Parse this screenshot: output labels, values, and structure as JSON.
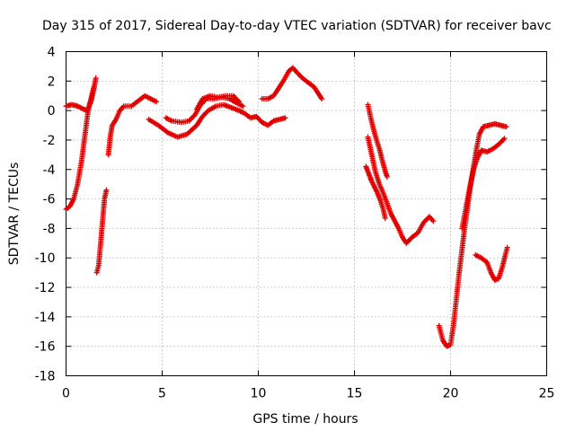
{
  "chart_data": {
    "type": "scatter",
    "title": "Day 315 of 2017, Sidereal Day-to-day VTEC variation (SDTVAR) for receiver bavc",
    "xlabel": "GPS time / hours",
    "ylabel": "SDTVAR / TECUs",
    "xlim": [
      0,
      25
    ],
    "ylim": [
      -18,
      4
    ],
    "xticks": [
      "0",
      "5",
      "10",
      "15",
      "20",
      "25"
    ],
    "yticks": [
      "4",
      "2",
      "0",
      "-2",
      "-4",
      "-6",
      "-8",
      "-10",
      "-12",
      "-14",
      "-16",
      "-18"
    ],
    "grid": true,
    "marker": "plus",
    "color": "#e00000",
    "segments": [
      [
        [
          0.0,
          0.3
        ],
        [
          0.3,
          0.4
        ],
        [
          0.6,
          0.3
        ],
        [
          0.9,
          0.1
        ],
        [
          1.1,
          0.0
        ],
        [
          1.3,
          0.6
        ],
        [
          1.45,
          1.5
        ],
        [
          1.55,
          2.2
        ]
      ],
      [
        [
          0.0,
          -6.7
        ],
        [
          0.2,
          -6.5
        ],
        [
          0.4,
          -6.0
        ],
        [
          0.6,
          -5.0
        ],
        [
          0.8,
          -3.5
        ],
        [
          0.95,
          -2.0
        ],
        [
          1.05,
          -1.0
        ],
        [
          1.15,
          0.0
        ],
        [
          1.3,
          0.8
        ],
        [
          1.45,
          1.6
        ]
      ],
      [
        [
          1.6,
          -11.0
        ],
        [
          1.7,
          -10.5
        ],
        [
          1.8,
          -9.0
        ],
        [
          1.9,
          -7.5
        ],
        [
          2.0,
          -6.0
        ],
        [
          2.1,
          -5.4
        ]
      ],
      [
        [
          2.2,
          -3.0
        ],
        [
          2.3,
          -1.8
        ],
        [
          2.4,
          -1.0
        ],
        [
          2.6,
          -0.6
        ],
        [
          2.8,
          0.0
        ],
        [
          3.0,
          0.3
        ],
        [
          3.4,
          0.3
        ],
        [
          3.8,
          0.7
        ],
        [
          4.1,
          1.0
        ],
        [
          4.4,
          0.8
        ],
        [
          4.7,
          0.6
        ]
      ],
      [
        [
          4.3,
          -0.6
        ],
        [
          4.8,
          -1.0
        ],
        [
          5.3,
          -1.5
        ],
        [
          5.8,
          -1.8
        ],
        [
          6.3,
          -1.6
        ],
        [
          6.8,
          -1.0
        ],
        [
          7.1,
          -0.4
        ],
        [
          7.4,
          0.0
        ],
        [
          7.8,
          0.3
        ],
        [
          8.2,
          0.4
        ],
        [
          8.6,
          0.2
        ],
        [
          9.0,
          0.0
        ],
        [
          9.3,
          -0.2
        ],
        [
          9.6,
          -0.5
        ],
        [
          9.9,
          -0.4
        ],
        [
          10.2,
          -0.8
        ],
        [
          10.5,
          -1.0
        ],
        [
          10.8,
          -0.7
        ],
        [
          11.1,
          -0.6
        ],
        [
          11.4,
          -0.5
        ]
      ],
      [
        [
          5.2,
          -0.5
        ],
        [
          5.5,
          -0.7
        ],
        [
          6.0,
          -0.8
        ],
        [
          6.4,
          -0.7
        ],
        [
          6.7,
          -0.3
        ],
        [
          7.0,
          0.4
        ],
        [
          7.3,
          0.8
        ],
        [
          7.7,
          0.8
        ],
        [
          8.1,
          0.9
        ],
        [
          8.5,
          0.8
        ],
        [
          8.9,
          0.5
        ],
        [
          9.2,
          0.3
        ]
      ],
      [
        [
          6.8,
          0.1
        ],
        [
          7.1,
          0.8
        ],
        [
          7.5,
          1.0
        ],
        [
          7.9,
          0.9
        ],
        [
          8.3,
          1.0
        ],
        [
          8.7,
          1.0
        ],
        [
          9.0,
          0.6
        ]
      ],
      [
        [
          10.2,
          0.8
        ],
        [
          10.5,
          0.8
        ],
        [
          10.8,
          1.0
        ],
        [
          11.0,
          1.4
        ],
        [
          11.3,
          2.0
        ],
        [
          11.6,
          2.7
        ],
        [
          11.8,
          2.9
        ],
        [
          12.0,
          2.6
        ],
        [
          12.3,
          2.2
        ],
        [
          12.6,
          1.9
        ],
        [
          12.9,
          1.6
        ],
        [
          13.1,
          1.2
        ],
        [
          13.3,
          0.8
        ]
      ],
      [
        [
          15.7,
          0.4
        ],
        [
          15.85,
          -0.5
        ],
        [
          16.0,
          -1.3
        ],
        [
          16.15,
          -2.0
        ],
        [
          16.3,
          -2.6
        ],
        [
          16.45,
          -3.4
        ],
        [
          16.6,
          -4.1
        ],
        [
          16.7,
          -4.5
        ]
      ],
      [
        [
          15.6,
          -3.8
        ],
        [
          15.75,
          -4.3
        ],
        [
          15.9,
          -4.8
        ],
        [
          16.05,
          -5.2
        ],
        [
          16.2,
          -5.6
        ],
        [
          16.35,
          -6.1
        ],
        [
          16.5,
          -6.7
        ],
        [
          16.6,
          -7.3
        ]
      ],
      [
        [
          15.7,
          -1.8
        ],
        [
          15.9,
          -3.0
        ],
        [
          16.1,
          -4.2
        ],
        [
          16.3,
          -5.0
        ],
        [
          16.5,
          -5.6
        ],
        [
          16.7,
          -6.3
        ],
        [
          16.9,
          -7.0
        ],
        [
          17.1,
          -7.5
        ],
        [
          17.3,
          -8.0
        ],
        [
          17.5,
          -8.6
        ],
        [
          17.7,
          -9.0
        ],
        [
          18.0,
          -8.6
        ],
        [
          18.3,
          -8.3
        ],
        [
          18.6,
          -7.6
        ],
        [
          18.9,
          -7.2
        ],
        [
          19.1,
          -7.5
        ]
      ],
      [
        [
          19.4,
          -14.6
        ],
        [
          19.6,
          -15.6
        ],
        [
          19.8,
          -16.0
        ],
        [
          20.0,
          -15.9
        ],
        [
          20.15,
          -14.6
        ],
        [
          20.3,
          -12.8
        ],
        [
          20.45,
          -11.0
        ],
        [
          20.6,
          -9.4
        ],
        [
          20.75,
          -7.8
        ],
        [
          20.9,
          -6.4
        ],
        [
          21.05,
          -5.0
        ],
        [
          21.2,
          -3.8
        ],
        [
          21.35,
          -2.6
        ],
        [
          21.5,
          -1.6
        ],
        [
          21.7,
          -1.1
        ],
        [
          22.0,
          -1.0
        ],
        [
          22.3,
          -0.9
        ],
        [
          22.6,
          -1.0
        ],
        [
          22.9,
          -1.1
        ]
      ],
      [
        [
          20.6,
          -8.0
        ],
        [
          20.8,
          -6.6
        ],
        [
          21.0,
          -5.2
        ],
        [
          21.2,
          -4.0
        ],
        [
          21.4,
          -3.2
        ],
        [
          21.6,
          -2.7
        ],
        [
          21.9,
          -2.8
        ],
        [
          22.2,
          -2.6
        ],
        [
          22.5,
          -2.3
        ],
        [
          22.8,
          -1.9
        ]
      ],
      [
        [
          21.3,
          -9.8
        ],
        [
          21.6,
          -10.0
        ],
        [
          21.9,
          -10.3
        ],
        [
          22.1,
          -11.0
        ],
        [
          22.3,
          -11.5
        ],
        [
          22.5,
          -11.4
        ],
        [
          22.7,
          -10.6
        ],
        [
          22.85,
          -9.8
        ],
        [
          22.95,
          -9.3
        ]
      ]
    ]
  }
}
